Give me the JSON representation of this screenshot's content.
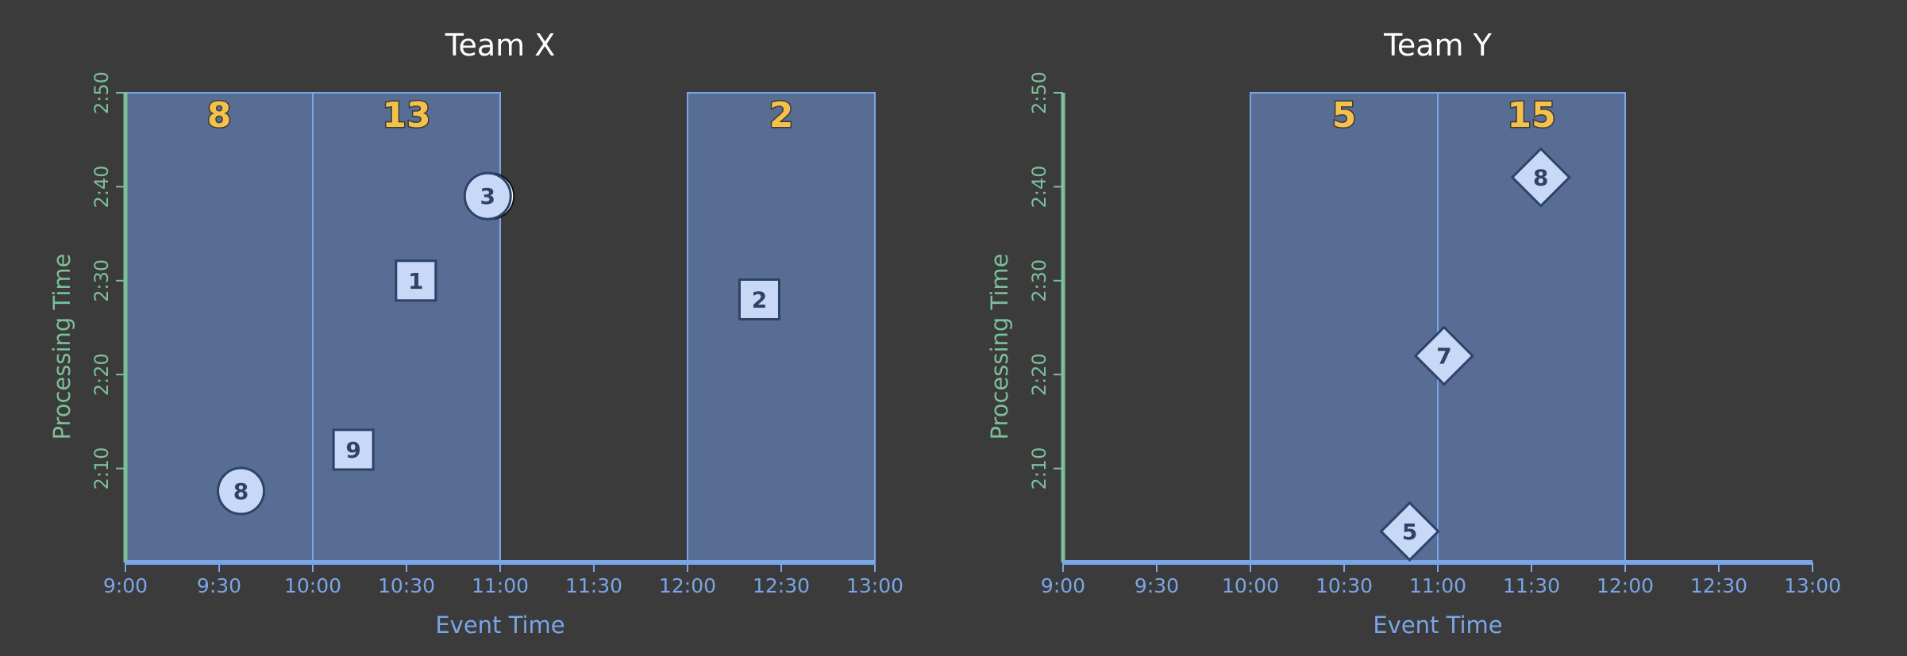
{
  "colors": {
    "background": "#3b3b3b",
    "window_fill": "#586d93",
    "window_stroke": "#7aa5e8",
    "x_axis": "#7aa5e8",
    "y_axis": "#7dbf9a",
    "marker_fill": "#c8d8f7",
    "marker_stroke": "#2f4268",
    "count_text": "#f4c14a"
  },
  "chart_data": [
    {
      "type": "scatter",
      "title": "Team X",
      "xlabel": "Event Time",
      "ylabel": "Processing Time",
      "x_ticks": [
        "9:00",
        "9:30",
        "10:00",
        "10:30",
        "11:00",
        "11:30",
        "12:00",
        "12:30",
        "13:00"
      ],
      "y_ticks": [
        "2:10",
        "2:20",
        "2:30",
        "2:40",
        "2:50"
      ],
      "xlim": [
        "9:00",
        "13:00"
      ],
      "ylim": [
        "2:00",
        "2:50"
      ],
      "windows": [
        {
          "start": "9:00",
          "end": "10:00",
          "count": "8"
        },
        {
          "start": "10:00",
          "end": "11:00",
          "count": "13"
        },
        {
          "start": "12:00",
          "end": "13:00",
          "count": "2"
        }
      ],
      "points": [
        {
          "x": "9:37",
          "y": "2:07.6",
          "value": "8",
          "shape": "circle"
        },
        {
          "x": "10:13",
          "y": "2:12",
          "value": "9",
          "shape": "square"
        },
        {
          "x": "10:33",
          "y": "2:30",
          "value": "1",
          "shape": "square"
        },
        {
          "x": "10:56",
          "y": "2:39",
          "value": "3",
          "shape": "circle",
          "clipped": true
        },
        {
          "x": "12:23",
          "y": "2:28",
          "value": "2",
          "shape": "square"
        }
      ]
    },
    {
      "type": "scatter",
      "title": "Team Y",
      "xlabel": "Event Time",
      "ylabel": "Processing Time",
      "x_ticks": [
        "9:00",
        "9:30",
        "10:00",
        "10:30",
        "11:00",
        "11:30",
        "12:00",
        "12:30",
        "13:00"
      ],
      "y_ticks": [
        "2:10",
        "2:20",
        "2:30",
        "2:40",
        "2:50"
      ],
      "xlim": [
        "9:00",
        "13:00"
      ],
      "ylim": [
        "2:00",
        "2:50"
      ],
      "windows": [
        {
          "start": "10:00",
          "end": "11:00",
          "count": "5"
        },
        {
          "start": "11:00",
          "end": "12:00",
          "count": "15"
        }
      ],
      "points": [
        {
          "x": "10:51",
          "y": "2:03.3",
          "value": "5",
          "shape": "diamond"
        },
        {
          "x": "11:02",
          "y": "2:22",
          "value": "7",
          "shape": "diamond"
        },
        {
          "x": "11:33",
          "y": "2:41",
          "value": "8",
          "shape": "diamond"
        }
      ]
    }
  ]
}
